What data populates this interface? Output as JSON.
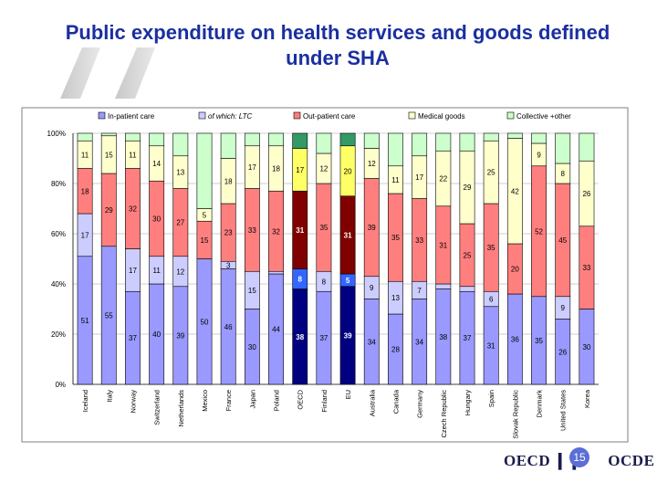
{
  "title": "Public expenditure on health services and goods defined under SHA",
  "footer": {
    "logo_left": "OECD",
    "logo_right": "OCDE",
    "slide_number": "15"
  },
  "chart_data": {
    "type": "bar",
    "stacked": true,
    "ylim": [
      0,
      100
    ],
    "y_ticks": [
      "0%",
      "20%",
      "40%",
      "60%",
      "80%",
      "100%"
    ],
    "categories": [
      "Iceland",
      "Italy",
      "Norway",
      "Switzerland",
      "Netherlands",
      "Mexico",
      "France",
      "Japan",
      "Poland",
      "OECD",
      "Finland",
      "EU",
      "Australia",
      "Canada",
      "Germany",
      "Czech Republic",
      "Hungary",
      "Spain",
      "Slovak Republic",
      "Denmark",
      "United States",
      "Korea"
    ],
    "highlight_categories": [
      "OECD",
      "EU"
    ],
    "legend": [
      {
        "name": "In-patient care",
        "color": "#9999ff"
      },
      {
        "name": "of which: LTC",
        "color": "#ccccff",
        "italic": true
      },
      {
        "name": "Out-patient care",
        "color": "#ff7f7f"
      },
      {
        "name": "Medical goods",
        "color": "#ffffcc"
      },
      {
        "name": "Collective +other",
        "color": "#ccffcc"
      }
    ],
    "highlight_colors": {
      "inpatient": "#000080",
      "ltc": "#3366ff",
      "outpatient": "#800000",
      "goods": "#ffff66",
      "collective": "#339966"
    },
    "series": [
      {
        "name": "In-patient care",
        "values": [
          51,
          55,
          37,
          40,
          39,
          50,
          46,
          30,
          44,
          38,
          37,
          39,
          34,
          28,
          34,
          38,
          37,
          31,
          36,
          35,
          26,
          30
        ],
        "labels": [
          "51",
          "55",
          "37",
          "40",
          "39",
          "50",
          "46",
          "30",
          "44",
          "38",
          "37",
          "39",
          "34",
          "28",
          "34",
          "38",
          "37",
          "31",
          "36",
          "35",
          "26",
          "30"
        ]
      },
      {
        "name": "of which: LTC",
        "values": [
          17,
          0,
          17,
          11,
          12,
          0,
          3,
          15,
          1,
          8,
          8,
          5,
          9,
          13,
          7,
          2,
          2,
          6,
          0,
          0,
          9,
          0
        ],
        "labels": [
          "17",
          "",
          "17",
          "11",
          "12",
          "",
          "3",
          "15",
          "",
          "8",
          "8",
          "5",
          "9",
          "13",
          "7",
          "",
          "",
          "6",
          "",
          "",
          "9",
          ""
        ]
      },
      {
        "name": "Out-patient care",
        "values": [
          18,
          29,
          32,
          30,
          27,
          15,
          23,
          33,
          32,
          31,
          35,
          31,
          39,
          35,
          33,
          31,
          25,
          35,
          20,
          52,
          45,
          33
        ],
        "labels": [
          "18",
          "29",
          "32",
          "30",
          "27",
          "15",
          "23",
          "33",
          "32",
          "31",
          "35",
          "31",
          "39",
          "35",
          "33",
          "31",
          "25",
          "35",
          "20",
          "52",
          "45",
          "33"
        ]
      },
      {
        "name": "Medical goods",
        "values": [
          11,
          15,
          11,
          14,
          13,
          5,
          18,
          17,
          18,
          17,
          12,
          20,
          12,
          11,
          17,
          22,
          29,
          25,
          42,
          9,
          8,
          26
        ],
        "labels": [
          "11",
          "15",
          "11",
          "14",
          "13",
          "5",
          "18",
          "17",
          "18",
          "17",
          "12",
          "20",
          "12",
          "11",
          "17",
          "22",
          "29",
          "25",
          "42",
          "9",
          "8",
          "26"
        ]
      },
      {
        "name": "Collective +other",
        "values": [
          3,
          1,
          3,
          5,
          10,
          30,
          10,
          5,
          6,
          6,
          8,
          5,
          6,
          13,
          9,
          7,
          7,
          4,
          3,
          4,
          13,
          11
        ],
        "labels": [
          "",
          "",
          "",
          "",
          "",
          "",
          "",
          "",
          "",
          "",
          "",
          "",
          "",
          "",
          "",
          "",
          "",
          "",
          "",
          "",
          "",
          ""
        ]
      }
    ]
  }
}
